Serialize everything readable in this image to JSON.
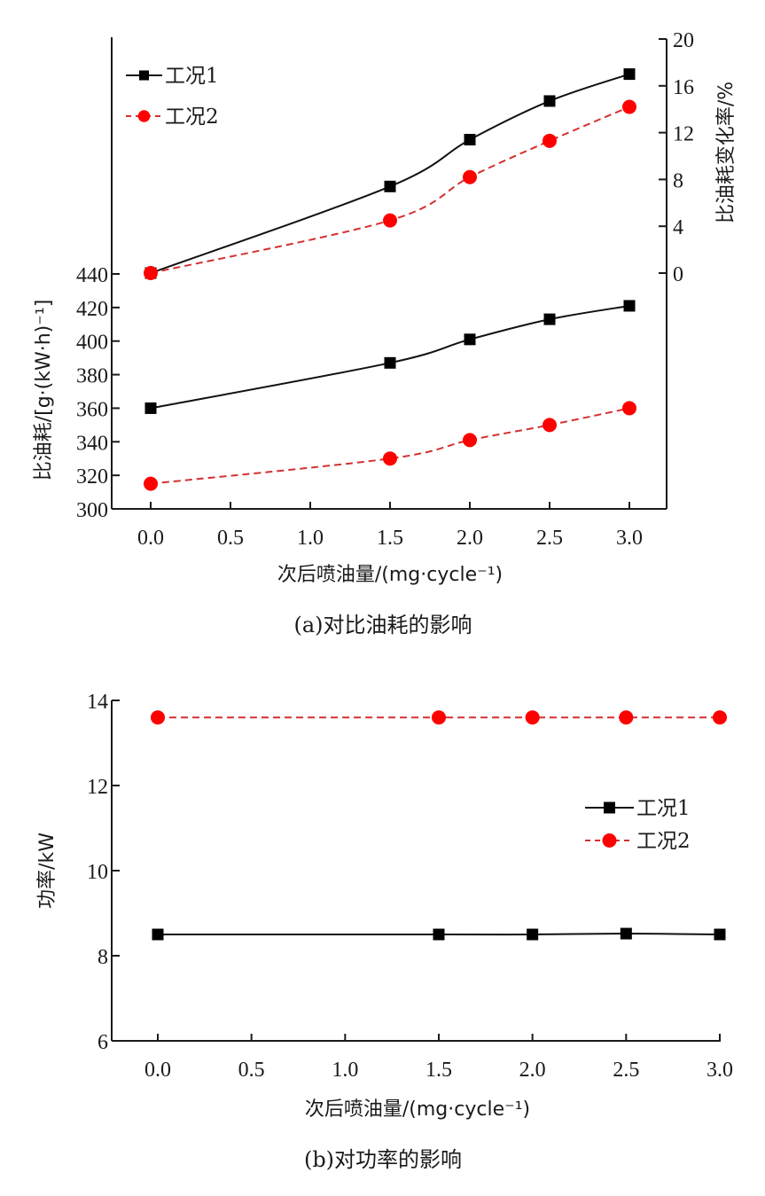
{
  "colors": {
    "series1_line": "#111111",
    "series1_marker": "#000000",
    "series2_line": "#d43030",
    "series2_marker": "#ff0000",
    "axis": "#1a1a1a"
  },
  "chart_data": [
    {
      "id": "a",
      "type": "line",
      "caption": "(a)对比油耗的影响",
      "xlabel": "次后喷油量/(mg·cycle⁻¹)",
      "ylabel": "比油耗/[g·(kW·h)⁻¹]",
      "y2label": "比油耗变化率/%",
      "x": [
        0.0,
        1.5,
        2.0,
        2.5,
        3.0
      ],
      "xticks": [
        "0.0",
        "0.5",
        "1.0",
        "1.5",
        "2.0",
        "2.5",
        "3.0"
      ],
      "xtick_values": [
        0.0,
        0.5,
        1.0,
        1.5,
        2.0,
        2.5,
        3.0
      ],
      "xlim": [
        -0.24,
        3.23
      ],
      "yticks": [
        "300",
        "320",
        "340",
        "360",
        "380",
        "400",
        "420",
        "440"
      ],
      "ytick_values": [
        300,
        320,
        340,
        360,
        380,
        400,
        420,
        440
      ],
      "ylim": [
        300,
        440
      ],
      "y2ticks": [
        "0",
        "4",
        "8",
        "12",
        "16",
        "20"
      ],
      "y2tick_values": [
        0,
        4,
        8,
        12,
        16,
        20
      ],
      "y2lim": [
        0,
        20
      ],
      "grid": false,
      "legend_position": "top-left",
      "series": [
        {
          "name": "工况1",
          "axis": "left",
          "marker": "square",
          "style": "solid",
          "values": [
            360,
            387,
            401,
            413,
            421
          ]
        },
        {
          "name": "工况2",
          "axis": "left",
          "marker": "circle",
          "style": "dashed",
          "values": [
            315,
            330,
            341,
            350,
            360
          ]
        },
        {
          "name": "工况1",
          "axis": "right",
          "marker": "square",
          "style": "solid",
          "values": [
            0,
            7.4,
            11.4,
            14.7,
            17.0
          ]
        },
        {
          "name": "工况2",
          "axis": "right",
          "marker": "circle",
          "style": "dashed",
          "values": [
            0,
            4.5,
            8.2,
            11.3,
            14.2
          ]
        }
      ],
      "legend": [
        {
          "name": "工况1",
          "marker": "square",
          "style": "solid"
        },
        {
          "name": "工况2",
          "marker": "circle",
          "style": "dashed"
        }
      ]
    },
    {
      "id": "b",
      "type": "line",
      "caption": "(b)对功率的影响",
      "xlabel": "次后喷油量/(mg·cycle⁻¹)",
      "ylabel": "功率/kW",
      "x": [
        0.0,
        1.5,
        2.0,
        2.5,
        3.0
      ],
      "xticks": [
        "0.0",
        "0.5",
        "1.0",
        "1.5",
        "2.0",
        "2.5",
        "3.0"
      ],
      "xtick_values": [
        0.0,
        0.5,
        1.0,
        1.5,
        2.0,
        2.5,
        3.0
      ],
      "xlim": [
        -0.25,
        3.0
      ],
      "yticks": [
        "6",
        "8",
        "10",
        "12",
        "14"
      ],
      "ytick_values": [
        6,
        8,
        10,
        12,
        14
      ],
      "ylim": [
        6,
        14
      ],
      "grid": false,
      "legend_position": "center-right",
      "series": [
        {
          "name": "工况1",
          "axis": "left",
          "marker": "square",
          "style": "solid",
          "values": [
            8.5,
            8.5,
            8.5,
            8.52,
            8.5
          ]
        },
        {
          "name": "工况2",
          "axis": "left",
          "marker": "circle",
          "style": "dashed",
          "values": [
            13.6,
            13.6,
            13.6,
            13.6,
            13.6
          ]
        }
      ],
      "legend": [
        {
          "name": "工况1",
          "marker": "square",
          "style": "solid"
        },
        {
          "name": "工况2",
          "marker": "circle",
          "style": "dashed"
        }
      ]
    }
  ]
}
